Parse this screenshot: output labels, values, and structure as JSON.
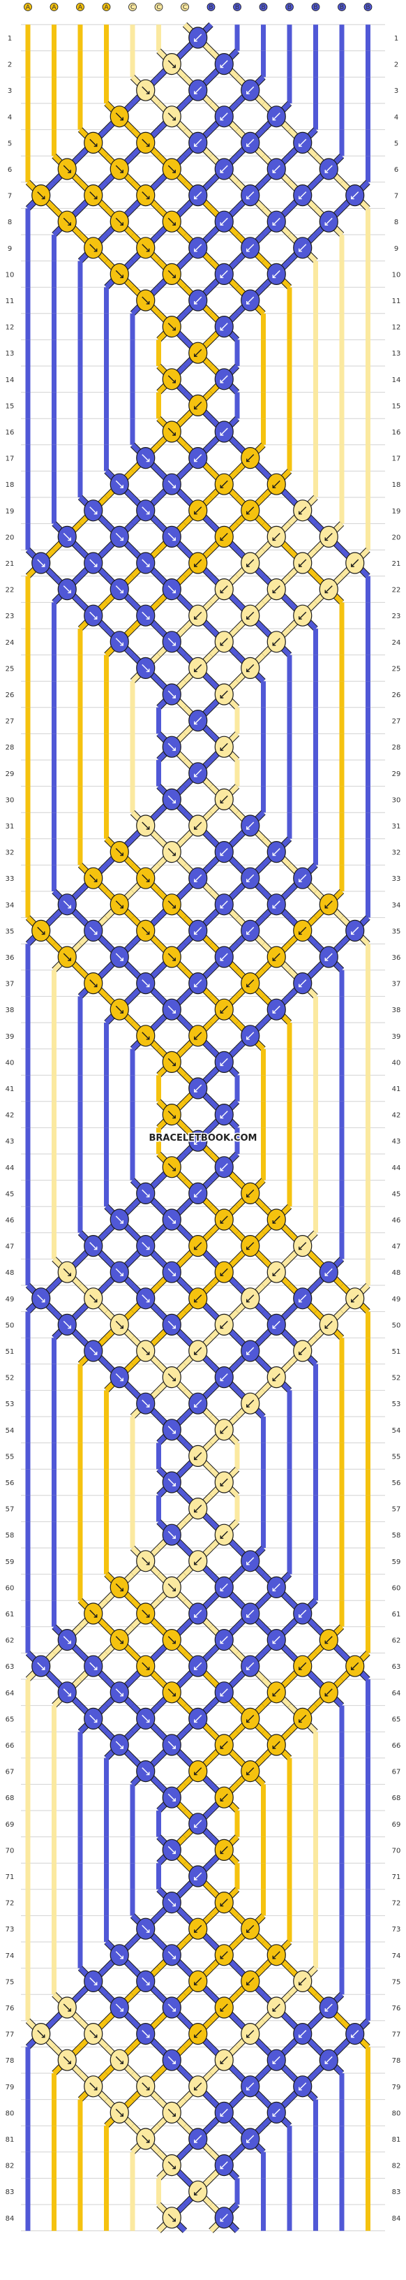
{
  "watermark": "BRACELETBOOK.COM",
  "strands": [
    "A",
    "A",
    "A",
    "A",
    "C",
    "C",
    "C",
    "B",
    "B",
    "B",
    "B",
    "B",
    "B",
    "B"
  ],
  "colors": {
    "A": "#f5c20f",
    "B": "#5058d6",
    "C": "#fbe9a0",
    "outline": "#1a1a1a",
    "grid": "#d2d2d2",
    "row_label": "#333333",
    "background": "#ffffff"
  },
  "rows": [
    "1",
    "2",
    "3",
    "4",
    "5",
    "6",
    "7",
    "8",
    "9",
    "10",
    "11",
    "12",
    "13",
    "14",
    "15",
    "16",
    "17",
    "18",
    "19",
    "20",
    "21",
    "22",
    "23",
    "24",
    "25",
    "26",
    "27",
    "28",
    "29",
    "30",
    "31",
    "32",
    "33",
    "34",
    "35",
    "36",
    "37",
    "38",
    "39",
    "40",
    "41",
    "42",
    "43",
    "44",
    "45",
    "46",
    "47",
    "48",
    "49",
    "50",
    "51",
    "52",
    "53",
    "54",
    "55",
    "56",
    "57",
    "58",
    "59",
    "60",
    "61",
    "62",
    "63",
    "64",
    "65",
    "66",
    "67",
    "68",
    "69",
    "70",
    "71",
    "72",
    "73",
    "74",
    "75",
    "76",
    "77",
    "78",
    "79",
    "80",
    "81",
    "82",
    "83",
    "84"
  ],
  "knot_style": "forward-knot arrows on coloured ovals"
}
